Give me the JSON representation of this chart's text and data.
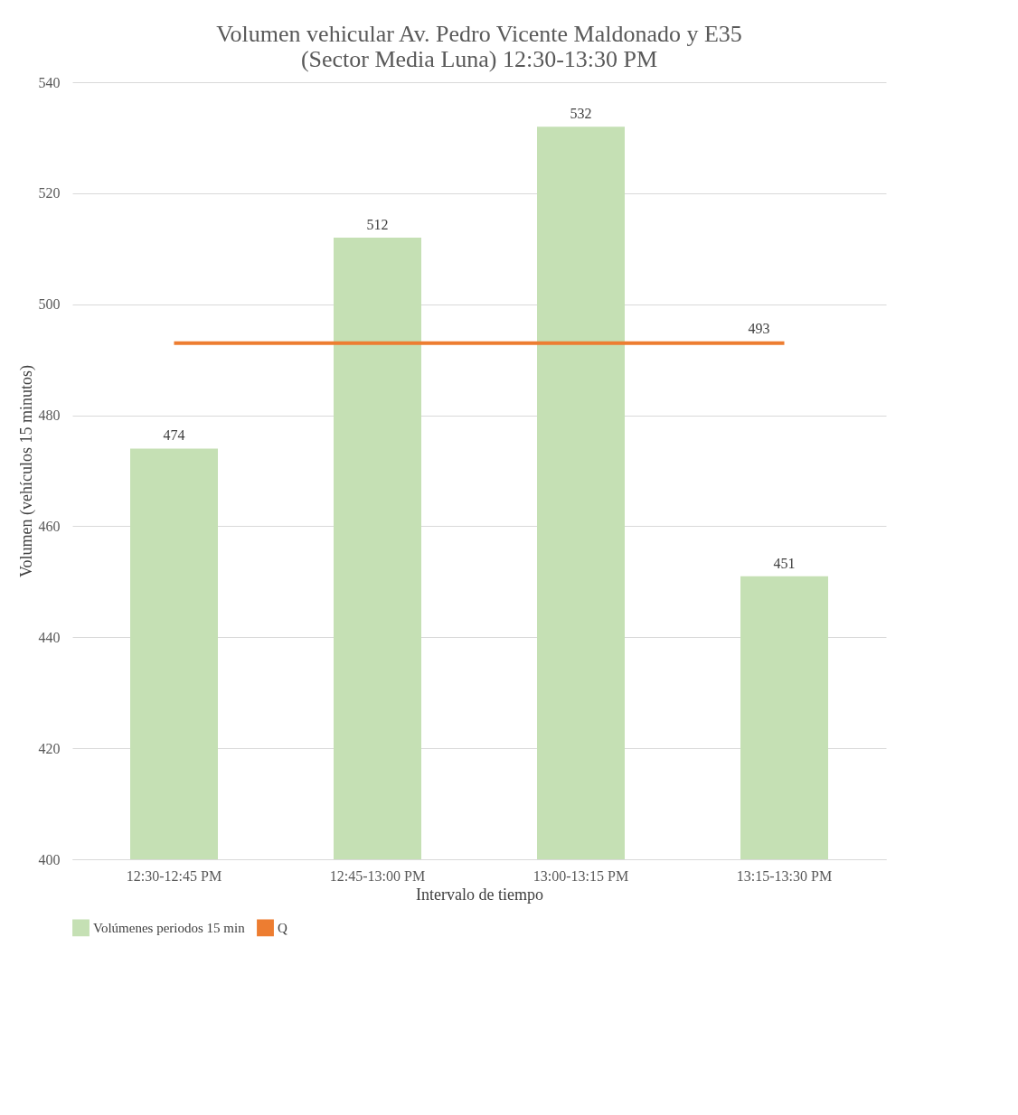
{
  "chart_data": {
    "type": "bar",
    "title": [
      "Volumen vehicular Av. Pedro Vicente Maldonado y E35",
      "(Sector Media Luna) 12:30-13:30 PM"
    ],
    "xlabel": "Intervalo de tiempo",
    "ylabel": "Volumen (vehículos 15 minutos)",
    "categories": [
      "12:30-12:45 PM",
      "12:45-13:00 PM",
      "13:00-13:15 PM",
      "13:15-13:30 PM"
    ],
    "series": [
      {
        "name": "Volúmenes periodos 15 min",
        "color": "#c5e0b4",
        "values": [
          474,
          512,
          532,
          451
        ],
        "value_labels": [
          "474",
          "512",
          "532",
          "451"
        ]
      },
      {
        "name": "Q",
        "type": "line",
        "color": "#ed7d31",
        "values": [
          493,
          493,
          493,
          493
        ],
        "value_labels": [
          null,
          null,
          null,
          "493"
        ]
      }
    ],
    "ylim": [
      400,
      540
    ],
    "yticks": [
      400,
      420,
      440,
      460,
      480,
      500,
      520,
      540
    ],
    "grid": "y",
    "legend": "bottom"
  }
}
